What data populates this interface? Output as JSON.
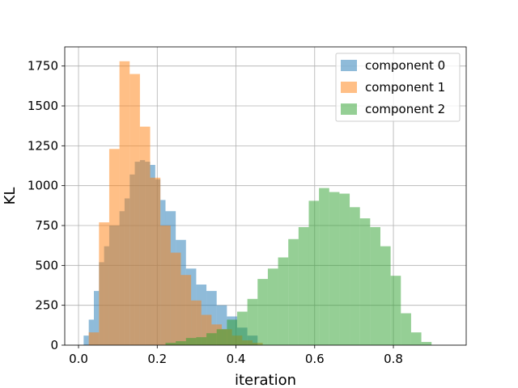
{
  "chart_data": {
    "type": "histogram",
    "xlabel": "iteration",
    "ylabel": "KL",
    "xlim": [
      -0.035,
      0.985
    ],
    "ylim": [
      0,
      1870
    ],
    "xticks": [
      0.0,
      0.2,
      0.4,
      0.6,
      0.8
    ],
    "xtick_labels": [
      "0.0",
      "0.2",
      "0.4",
      "0.6",
      "0.8"
    ],
    "yticks": [
      0,
      250,
      500,
      750,
      1000,
      1250,
      1500,
      1750
    ],
    "ytick_labels": [
      "0",
      "250",
      "500",
      "750",
      "1000",
      "1250",
      "1500",
      "1750"
    ],
    "grid": true,
    "legend_position": "top-right",
    "series": [
      {
        "name": "component 0",
        "color": "#1f77b4",
        "opacity": 0.5,
        "bins": [
          [
            0.013,
            0.026,
            60
          ],
          [
            0.026,
            0.039,
            160
          ],
          [
            0.039,
            0.052,
            340
          ],
          [
            0.052,
            0.065,
            520
          ],
          [
            0.065,
            0.078,
            620
          ],
          [
            0.078,
            0.104,
            750
          ],
          [
            0.104,
            0.117,
            840
          ],
          [
            0.117,
            0.13,
            920
          ],
          [
            0.13,
            0.143,
            1070
          ],
          [
            0.143,
            0.156,
            1150
          ],
          [
            0.156,
            0.169,
            1160
          ],
          [
            0.169,
            0.182,
            1150
          ],
          [
            0.182,
            0.195,
            1130
          ],
          [
            0.195,
            0.208,
            1040
          ],
          [
            0.208,
            0.221,
            910
          ],
          [
            0.221,
            0.247,
            840
          ],
          [
            0.247,
            0.273,
            660
          ],
          [
            0.273,
            0.299,
            480
          ],
          [
            0.299,
            0.325,
            380
          ],
          [
            0.325,
            0.351,
            340
          ],
          [
            0.351,
            0.377,
            250
          ],
          [
            0.377,
            0.403,
            180
          ],
          [
            0.403,
            0.429,
            110
          ],
          [
            0.429,
            0.455,
            60
          ]
        ]
      },
      {
        "name": "component 1",
        "color": "#ff7f0e",
        "opacity": 0.5,
        "bins": [
          [
            0.026,
            0.052,
            80
          ],
          [
            0.052,
            0.078,
            770
          ],
          [
            0.078,
            0.104,
            1230
          ],
          [
            0.104,
            0.13,
            1780
          ],
          [
            0.13,
            0.156,
            1700
          ],
          [
            0.156,
            0.182,
            1370
          ],
          [
            0.182,
            0.208,
            1050
          ],
          [
            0.208,
            0.234,
            750
          ],
          [
            0.234,
            0.26,
            580
          ],
          [
            0.26,
            0.286,
            440
          ],
          [
            0.286,
            0.312,
            280
          ],
          [
            0.312,
            0.338,
            190
          ],
          [
            0.338,
            0.364,
            130
          ],
          [
            0.364,
            0.39,
            100
          ],
          [
            0.39,
            0.416,
            60
          ],
          [
            0.416,
            0.442,
            30
          ],
          [
            0.442,
            0.468,
            15
          ]
        ]
      },
      {
        "name": "component 2",
        "color": "#2ca02c",
        "opacity": 0.5,
        "bins": [
          [
            0.221,
            0.247,
            15
          ],
          [
            0.247,
            0.273,
            25
          ],
          [
            0.273,
            0.299,
            45
          ],
          [
            0.299,
            0.325,
            50
          ],
          [
            0.325,
            0.351,
            75
          ],
          [
            0.351,
            0.377,
            100
          ],
          [
            0.377,
            0.403,
            160
          ],
          [
            0.403,
            0.429,
            210
          ],
          [
            0.429,
            0.455,
            290
          ],
          [
            0.455,
            0.481,
            415
          ],
          [
            0.481,
            0.507,
            480
          ],
          [
            0.507,
            0.533,
            550
          ],
          [
            0.533,
            0.559,
            665
          ],
          [
            0.559,
            0.585,
            740
          ],
          [
            0.585,
            0.611,
            905
          ],
          [
            0.611,
            0.637,
            985
          ],
          [
            0.637,
            0.663,
            960
          ],
          [
            0.663,
            0.689,
            950
          ],
          [
            0.689,
            0.715,
            865
          ],
          [
            0.715,
            0.741,
            795
          ],
          [
            0.741,
            0.767,
            740
          ],
          [
            0.767,
            0.793,
            620
          ],
          [
            0.793,
            0.819,
            435
          ],
          [
            0.819,
            0.845,
            200
          ],
          [
            0.845,
            0.871,
            80
          ],
          [
            0.871,
            0.897,
            20
          ]
        ]
      }
    ]
  }
}
